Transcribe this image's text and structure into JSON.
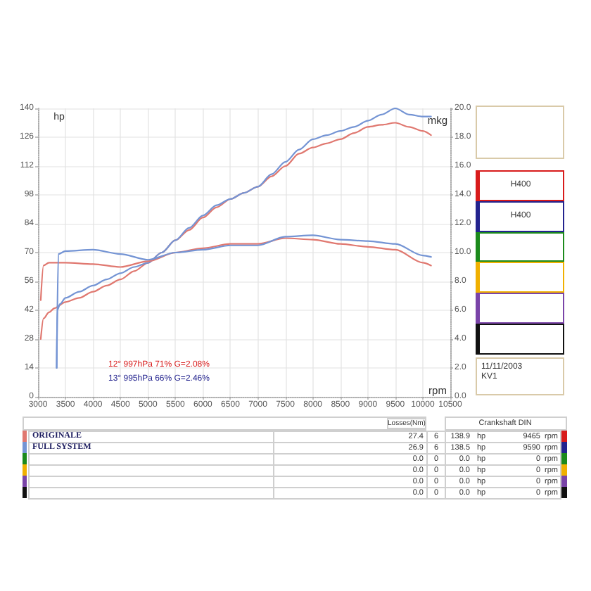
{
  "chart_data": {
    "type": "line",
    "xlabel": "rpm",
    "ylabel": "hp",
    "y2label": "mkg",
    "xlim": [
      3000,
      10500
    ],
    "xticks": [
      3000,
      3500,
      4000,
      4500,
      5000,
      5500,
      6000,
      6500,
      7000,
      7500,
      8000,
      8500,
      9000,
      9500,
      10000,
      10500
    ],
    "ylim": [
      0,
      140
    ],
    "yticks": [
      0,
      14,
      28,
      42,
      56,
      70,
      84,
      98,
      112,
      126,
      140
    ],
    "y2lim": [
      0,
      20
    ],
    "y2ticks": [
      {
        "value": 0,
        "label": "0.0"
      },
      {
        "value": 2,
        "label": "2.0"
      },
      {
        "value": 4,
        "label": "4.0"
      },
      {
        "value": 6,
        "label": "6.0"
      },
      {
        "value": 8,
        "label": "8.0"
      },
      {
        "value": 10,
        "label": "10.0"
      },
      {
        "value": 12,
        "label": "12.0"
      },
      {
        "value": 14,
        "label": "14.0"
      },
      {
        "value": 16,
        "label": "16.0"
      },
      {
        "value": 18,
        "label": "18.0"
      },
      {
        "value": 20,
        "label": "20.0"
      }
    ],
    "grid": true,
    "legend": "bottom left",
    "series": [
      {
        "name": "ORIGINALE",
        "color": "#e07870",
        "x": [
          3050,
          3100,
          3200,
          3300,
          3500,
          3750,
          4000,
          4250,
          4500,
          4750,
          5000,
          5250,
          5500,
          5750,
          6000,
          6250,
          6500,
          6750,
          7000,
          7250,
          7500,
          7750,
          8000,
          8250,
          8500,
          8750,
          9000,
          9250,
          9500,
          9750,
          10000,
          10150
        ],
        "values": [
          28,
          38,
          41,
          43,
          46,
          48,
          51,
          54,
          57,
          61,
          65,
          70,
          76,
          81,
          87,
          92,
          96,
          99,
          102,
          107,
          112,
          118,
          121,
          123,
          125,
          128,
          131,
          132,
          133,
          131,
          129,
          127
        ]
      },
      {
        "name": "FULL SYSTEM",
        "color": "#7494d4",
        "x": [
          3340,
          3350,
          3400,
          3500,
          3750,
          4000,
          4250,
          4500,
          4750,
          5000,
          5250,
          5500,
          5750,
          6000,
          6250,
          6500,
          6750,
          7000,
          7250,
          7500,
          7750,
          8000,
          8250,
          8500,
          8750,
          9000,
          9250,
          9500,
          9750,
          10000,
          10150
        ],
        "values": [
          14,
          42,
          45,
          48,
          51,
          54,
          57,
          60,
          63,
          65,
          70,
          76,
          82,
          88,
          93,
          96,
          99,
          102,
          108,
          114,
          120,
          125,
          127,
          129,
          131,
          134,
          137,
          140,
          137,
          136,
          136
        ]
      },
      {
        "color": "#e07870",
        "axis": "y2",
        "x": [
          3050,
          3100,
          3200,
          3500,
          4000,
          4500,
          5000,
          5500,
          6000,
          6500,
          7000,
          7500,
          8000,
          8500,
          9000,
          9500,
          10000,
          10150
        ],
        "values": [
          6.7,
          9.1,
          9.3,
          9.3,
          9.2,
          9.0,
          9.4,
          10.0,
          10.3,
          10.6,
          10.6,
          11.0,
          10.9,
          10.6,
          10.4,
          10.2,
          9.3,
          9.1
        ]
      },
      {
        "color": "#7494d4",
        "axis": "y2",
        "x": [
          3340,
          3370,
          3500,
          4000,
          4500,
          5000,
          5500,
          6000,
          6500,
          7000,
          7500,
          8000,
          8500,
          9000,
          9500,
          10000,
          10150
        ],
        "values": [
          2.0,
          9.9,
          10.1,
          10.2,
          9.9,
          9.5,
          10.0,
          10.2,
          10.5,
          10.5,
          11.1,
          11.2,
          10.9,
          10.8,
          10.6,
          9.8,
          9.7
        ]
      }
    ],
    "annotations": [
      "12° 997hPa 71% G=2.08%",
      "13° 995hPa 66% G=2.46%",
      "11/11/2003",
      "KV1",
      "H400",
      "H400",
      "Losses(Nm)",
      "Crankshaft DIN",
      "27.4",
      "6",
      "138.9",
      "hp",
      "9465",
      "rpm",
      "26.9",
      "6",
      "138.5",
      "hp",
      "9590",
      "rpm",
      "0.0",
      "0",
      "0.0",
      "hp",
      "0",
      "rpm",
      "0.0",
      "0",
      "0.0",
      "hp",
      "0",
      "rpm",
      "0.0",
      "0",
      "0.0",
      "hp",
      "0",
      "rpm",
      "0.0",
      "0",
      "0.0",
      "hp",
      "0",
      "rpm"
    ]
  }
}
